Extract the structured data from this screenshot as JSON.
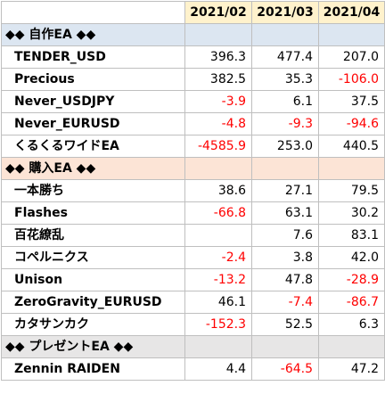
{
  "header": {
    "months": [
      "2021/02",
      "2021/03",
      "2021/04"
    ]
  },
  "sections": [
    {
      "title": "◆◆ 自作EA ◆◆",
      "color": "#dce6f1",
      "rows": [
        {
          "name": "TENDER_USD",
          "values": [
            "396.3",
            "477.4",
            "207.0"
          ]
        },
        {
          "name": "Precious",
          "values": [
            "382.5",
            "35.3",
            "-106.0"
          ]
        },
        {
          "name": "Never_USDJPY",
          "values": [
            "-3.9",
            "6.1",
            "37.5"
          ]
        },
        {
          "name": "Never_EURUSD",
          "values": [
            "-4.8",
            "-9.3",
            "-94.6"
          ]
        },
        {
          "name": "くるくるワイドEA",
          "values": [
            "-4585.9",
            "253.0",
            "440.5"
          ]
        }
      ]
    },
    {
      "title": "◆◆ 購入EA ◆◆",
      "color": "#fce4d6",
      "rows": [
        {
          "name": "一本勝ち",
          "values": [
            "38.6",
            "27.1",
            "79.5"
          ]
        },
        {
          "name": "Flashes",
          "values": [
            "-66.8",
            "63.1",
            "30.2"
          ]
        },
        {
          "name": "百花繚乱",
          "values": [
            "",
            "7.6",
            "83.1"
          ]
        },
        {
          "name": "コペルニクス",
          "values": [
            "-2.4",
            "3.8",
            "42.0"
          ]
        },
        {
          "name": "Unison",
          "values": [
            "-13.2",
            "47.8",
            "-28.9"
          ]
        },
        {
          "name": "ZeroGravity_EURUSD",
          "values": [
            "46.1",
            "-7.4",
            "-86.7"
          ]
        },
        {
          "name": "カタサンカク",
          "values": [
            "-152.3",
            "52.5",
            "6.3"
          ]
        }
      ]
    },
    {
      "title": "◆◆ プレゼントEA ◆◆",
      "color": "#e7e6e6",
      "rows": [
        {
          "name": "Zennin RAIDEN",
          "values": [
            "4.4",
            "-64.5",
            "47.2"
          ]
        }
      ]
    }
  ],
  "colors": {
    "header_fill": "#fff2cc",
    "negative_text": "#ff0000",
    "grid_line": "#bfbfbf"
  }
}
